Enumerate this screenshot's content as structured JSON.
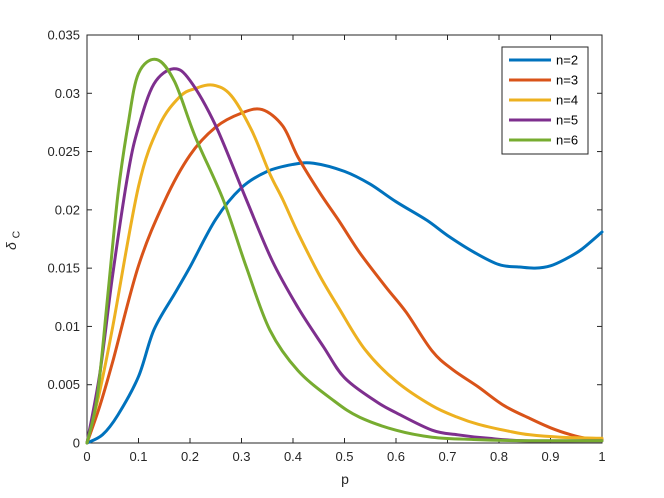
{
  "figure": {
    "background": "#ffffff",
    "axes_color": "#262626",
    "legend_text_color": "#000000"
  },
  "chart_data": {
    "type": "line",
    "title": "",
    "xlabel": "p",
    "ylabel": "delta_C",
    "ylabel_main": "δ",
    "ylabel_sub": "C",
    "xlim": [
      0,
      1
    ],
    "ylim": [
      0,
      0.035
    ],
    "grid": false,
    "box": true,
    "line_width": 3,
    "x_ticks": {
      "values": [
        0,
        0.1,
        0.2,
        0.3,
        0.4,
        0.5,
        0.6,
        0.7,
        0.8,
        0.9,
        1
      ],
      "labels": [
        "0",
        "0.1",
        "0.2",
        "0.3",
        "0.4",
        "0.5",
        "0.6",
        "0.7",
        "0.8",
        "0.9",
        "1"
      ]
    },
    "y_ticks": {
      "values": [
        0,
        0.005,
        0.01,
        0.015,
        0.02,
        0.025,
        0.03,
        0.035
      ],
      "labels": [
        "0",
        "0.005",
        "0.01",
        "0.015",
        "0.02",
        "0.025",
        "0.03",
        "0.035"
      ]
    },
    "legend": {
      "position": "top-right",
      "entries": [
        "n=2",
        "n=3",
        "n=4",
        "n=5",
        "n=6"
      ]
    },
    "series": [
      {
        "name": "n=2",
        "color": "#0072BD",
        "points": [
          [
            0,
            0
          ],
          [
            0.03,
            0.0007
          ],
          [
            0.06,
            0.0024
          ],
          [
            0.1,
            0.0057
          ],
          [
            0.13,
            0.0097
          ],
          [
            0.17,
            0.0128
          ],
          [
            0.2,
            0.0151
          ],
          [
            0.25,
            0.0192
          ],
          [
            0.3,
            0.0219
          ],
          [
            0.35,
            0.0233
          ],
          [
            0.4,
            0.0239
          ],
          [
            0.44,
            0.024
          ],
          [
            0.5,
            0.0233
          ],
          [
            0.55,
            0.0222
          ],
          [
            0.6,
            0.0207
          ],
          [
            0.66,
            0.0191
          ],
          [
            0.7,
            0.0178
          ],
          [
            0.75,
            0.0164
          ],
          [
            0.8,
            0.0153
          ],
          [
            0.84,
            0.0151
          ],
          [
            0.87,
            0.015
          ],
          [
            0.9,
            0.0152
          ],
          [
            0.93,
            0.0158
          ],
          [
            0.96,
            0.0166
          ],
          [
            1,
            0.0181
          ]
        ]
      },
      {
        "name": "n=3",
        "color": "#D95319",
        "points": [
          [
            0,
            0
          ],
          [
            0.025,
            0.0032
          ],
          [
            0.05,
            0.007
          ],
          [
            0.1,
            0.0152
          ],
          [
            0.15,
            0.0207
          ],
          [
            0.2,
            0.0247
          ],
          [
            0.25,
            0.0271
          ],
          [
            0.3,
            0.0283
          ],
          [
            0.34,
            0.0286
          ],
          [
            0.38,
            0.0272
          ],
          [
            0.41,
            0.0245
          ],
          [
            0.45,
            0.0216
          ],
          [
            0.49,
            0.019
          ],
          [
            0.53,
            0.0163
          ],
          [
            0.58,
            0.0134
          ],
          [
            0.62,
            0.0112
          ],
          [
            0.67,
            0.0079
          ],
          [
            0.71,
            0.0063
          ],
          [
            0.76,
            0.0048
          ],
          [
            0.81,
            0.0032
          ],
          [
            0.86,
            0.0021
          ],
          [
            0.9,
            0.0013
          ],
          [
            0.94,
            0.0007
          ],
          [
            0.97,
            0.0004
          ],
          [
            1,
            0.0003
          ]
        ]
      },
      {
        "name": "n=4",
        "color": "#EDB120",
        "points": [
          [
            0,
            0
          ],
          [
            0.025,
            0.0045
          ],
          [
            0.05,
            0.01
          ],
          [
            0.1,
            0.022
          ],
          [
            0.14,
            0.0272
          ],
          [
            0.18,
            0.0297
          ],
          [
            0.21,
            0.0304
          ],
          [
            0.245,
            0.0307
          ],
          [
            0.28,
            0.0298
          ],
          [
            0.32,
            0.0268
          ],
          [
            0.355,
            0.0231
          ],
          [
            0.38,
            0.0209
          ],
          [
            0.41,
            0.018
          ],
          [
            0.45,
            0.0145
          ],
          [
            0.49,
            0.0115
          ],
          [
            0.54,
            0.008
          ],
          [
            0.6,
            0.0053
          ],
          [
            0.67,
            0.0032
          ],
          [
            0.72,
            0.0022
          ],
          [
            0.76,
            0.0016
          ],
          [
            0.82,
            0.001
          ],
          [
            0.86,
            0.0007
          ],
          [
            0.92,
            0.0005
          ],
          [
            1,
            0.0004
          ]
        ]
      },
      {
        "name": "n=5",
        "color": "#7E2F8E",
        "points": [
          [
            0,
            0
          ],
          [
            0.025,
            0.006
          ],
          [
            0.05,
            0.0145
          ],
          [
            0.08,
            0.0232
          ],
          [
            0.1,
            0.0271
          ],
          [
            0.13,
            0.0308
          ],
          [
            0.168,
            0.0321
          ],
          [
            0.2,
            0.0311
          ],
          [
            0.25,
            0.0272
          ],
          [
            0.31,
            0.0208
          ],
          [
            0.36,
            0.0156
          ],
          [
            0.41,
            0.0116
          ],
          [
            0.46,
            0.0082
          ],
          [
            0.5,
            0.0056
          ],
          [
            0.56,
            0.0036
          ],
          [
            0.6,
            0.0026
          ],
          [
            0.67,
            0.0011
          ],
          [
            0.72,
            0.0007
          ],
          [
            0.78,
            0.0004
          ],
          [
            0.85,
            0.0002
          ],
          [
            1,
            0.0002
          ]
        ]
      },
      {
        "name": "n=6",
        "color": "#77AC30",
        "points": [
          [
            0,
            0
          ],
          [
            0.02,
            0.004
          ],
          [
            0.04,
            0.0125
          ],
          [
            0.06,
            0.0213
          ],
          [
            0.08,
            0.0274
          ],
          [
            0.1,
            0.0317
          ],
          [
            0.135,
            0.0329
          ],
          [
            0.17,
            0.031
          ],
          [
            0.21,
            0.0263
          ],
          [
            0.265,
            0.0208
          ],
          [
            0.31,
            0.015
          ],
          [
            0.355,
            0.0097
          ],
          [
            0.41,
            0.0062
          ],
          [
            0.48,
            0.0036
          ],
          [
            0.53,
            0.0022
          ],
          [
            0.6,
            0.0011
          ],
          [
            0.67,
            0.0005
          ],
          [
            0.75,
            0.0003
          ],
          [
            0.85,
            0.0002
          ],
          [
            1,
            0.0002
          ]
        ]
      }
    ]
  }
}
